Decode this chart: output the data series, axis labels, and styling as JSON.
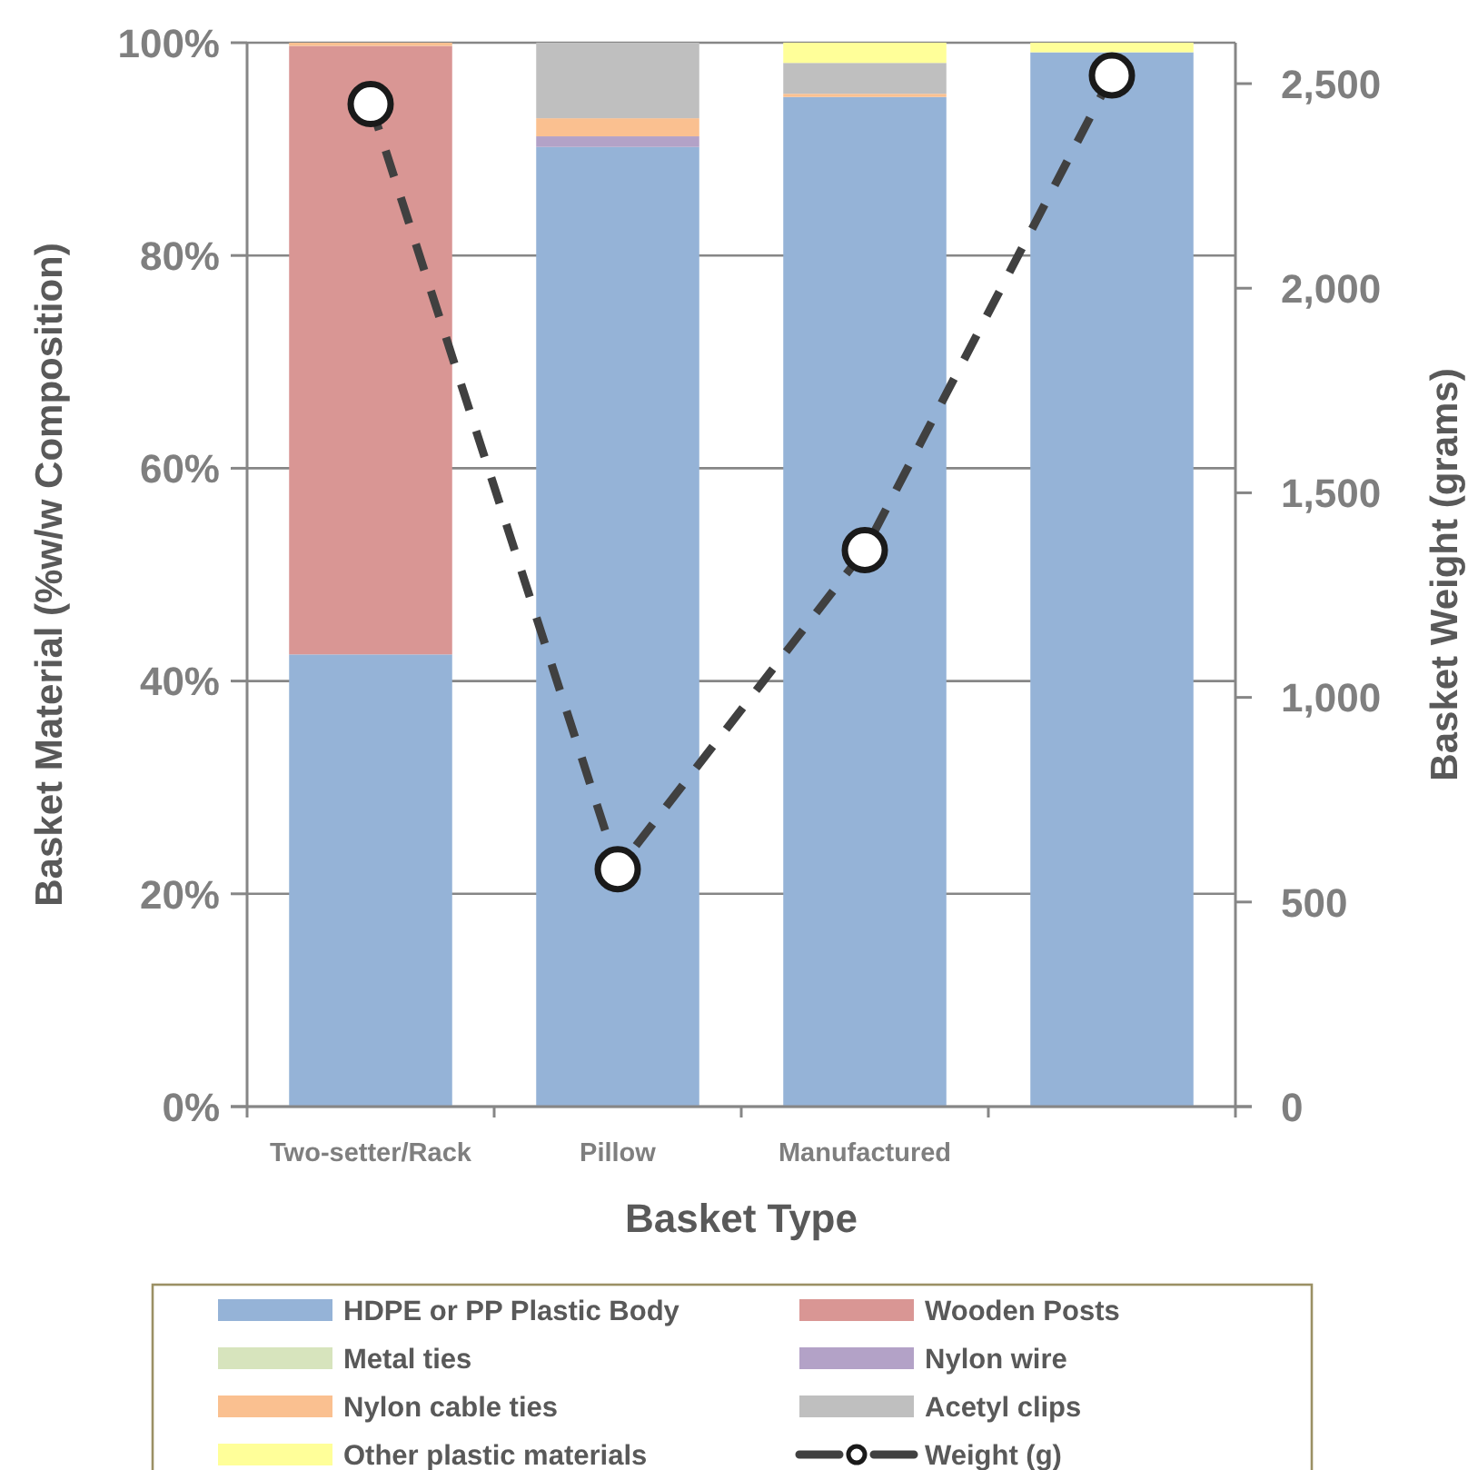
{
  "chart_data": {
    "type": "bar",
    "stacked": true,
    "categories": [
      "Two-setter/Rack",
      "Pillow",
      "Manufactured",
      null
    ],
    "xlabel": "Basket Type",
    "ylabel": "Basket Material (%w/w Composition)",
    "y2label": "Basket Weight (grams)",
    "ylim": [
      0,
      100
    ],
    "yticks": [
      {
        "value": 0,
        "label": "0%"
      },
      {
        "value": 20,
        "label": "20%"
      },
      {
        "value": 40,
        "label": "40%"
      },
      {
        "value": 60,
        "label": "60%"
      },
      {
        "value": 80,
        "label": "80%"
      },
      {
        "value": 100,
        "label": "100%"
      }
    ],
    "y2lim": [
      0,
      2600
    ],
    "y2ticks": [
      0,
      500,
      {
        "value": 1000,
        "label": "1,000"
      },
      {
        "value": 1500,
        "label": "1,500"
      },
      {
        "value": 2000,
        "label": "2,000"
      },
      {
        "value": 2500,
        "label": "2,500"
      }
    ],
    "grid": "y",
    "legend": "bottom",
    "series": [
      {
        "name": "HDPE or PP Plastic Body",
        "color": "#95b3d7",
        "values": [
          42.5,
          90.2,
          94.9,
          99.1
        ]
      },
      {
        "name": "Wooden Posts",
        "color": "#d99694",
        "values": [
          57.2,
          0,
          0,
          0
        ]
      },
      {
        "name": "Metal ties",
        "color": "#d7e4bd",
        "values": [
          0,
          0,
          0,
          0
        ]
      },
      {
        "name": "Nylon wire",
        "color": "#b3a2c7",
        "values": [
          0,
          1.0,
          0,
          0
        ]
      },
      {
        "name": "Nylon cable ties",
        "color": "#fac090",
        "values": [
          0.3,
          1.7,
          0.3,
          0
        ]
      },
      {
        "name": "Acetyl clips",
        "color": "#bfbfbf",
        "values": [
          0,
          7.1,
          2.9,
          0
        ]
      },
      {
        "name": "Other plastic materials",
        "color": "#ffff99",
        "values": [
          0,
          0,
          1.9,
          0.9
        ]
      },
      {
        "name": "Weight (g)",
        "type": "line",
        "axis": "y2",
        "color": "#404040",
        "marker": "circle",
        "line_style": "dashed",
        "values": [
          2450,
          580,
          1360,
          2520
        ]
      }
    ]
  }
}
